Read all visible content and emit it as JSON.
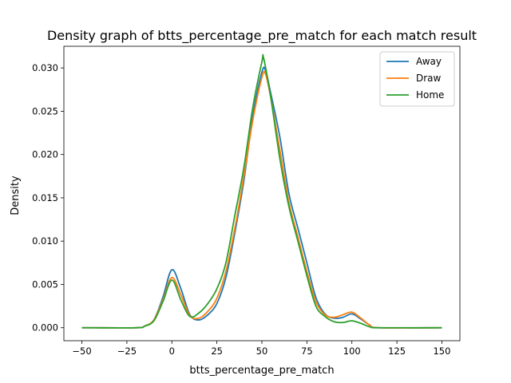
{
  "chart_data": {
    "type": "line",
    "title": "Density graph of btts_percentage_pre_match for each match result",
    "xlabel": "btts_percentage_pre_match",
    "ylabel": "Density",
    "xlim": [
      -60,
      160
    ],
    "ylim": [
      -0.0015,
      0.0325
    ],
    "xticks": [
      -50,
      -25,
      0,
      25,
      50,
      75,
      100,
      125,
      150
    ],
    "xtick_labels": [
      "−50",
      "−25",
      "0",
      "25",
      "50",
      "75",
      "100",
      "125",
      "150"
    ],
    "yticks": [
      0.0,
      0.005,
      0.01,
      0.015,
      0.02,
      0.025,
      0.03
    ],
    "ytick_labels": [
      "0.000",
      "0.005",
      "0.010",
      "0.015",
      "0.020",
      "0.025",
      "0.030"
    ],
    "legend_position": "top-right",
    "grid": false,
    "series": [
      {
        "name": "Away",
        "color": "#1f77b4",
        "points": [
          [
            -50,
            0.0
          ],
          [
            -20,
            0.0
          ],
          [
            -15,
            0.0002
          ],
          [
            -10,
            0.0009
          ],
          [
            -5,
            0.0035
          ],
          [
            0,
            0.0067
          ],
          [
            5,
            0.0045
          ],
          [
            10,
            0.0015
          ],
          [
            15,
            0.0009
          ],
          [
            20,
            0.0015
          ],
          [
            25,
            0.0028
          ],
          [
            30,
            0.0058
          ],
          [
            35,
            0.011
          ],
          [
            40,
            0.017
          ],
          [
            45,
            0.0245
          ],
          [
            50,
            0.0295
          ],
          [
            52,
            0.0297
          ],
          [
            55,
            0.027
          ],
          [
            60,
            0.022
          ],
          [
            65,
            0.0155
          ],
          [
            70,
            0.0115
          ],
          [
            75,
            0.0075
          ],
          [
            80,
            0.0035
          ],
          [
            85,
            0.0016
          ],
          [
            90,
            0.0011
          ],
          [
            95,
            0.0012
          ],
          [
            100,
            0.0016
          ],
          [
            105,
            0.001
          ],
          [
            110,
            0.0003
          ],
          [
            115,
            0.0
          ],
          [
            150,
            0.0
          ]
        ]
      },
      {
        "name": "Draw",
        "color": "#ff7f0e",
        "points": [
          [
            -50,
            0.0
          ],
          [
            -20,
            0.0
          ],
          [
            -15,
            0.0002
          ],
          [
            -10,
            0.0009
          ],
          [
            -5,
            0.0032
          ],
          [
            0,
            0.0058
          ],
          [
            5,
            0.0038
          ],
          [
            10,
            0.0014
          ],
          [
            15,
            0.0011
          ],
          [
            20,
            0.0019
          ],
          [
            25,
            0.0034
          ],
          [
            30,
            0.0065
          ],
          [
            35,
            0.0115
          ],
          [
            40,
            0.0175
          ],
          [
            45,
            0.024
          ],
          [
            50,
            0.0289
          ],
          [
            52,
            0.0293
          ],
          [
            55,
            0.0265
          ],
          [
            60,
            0.0205
          ],
          [
            65,
            0.0145
          ],
          [
            70,
            0.0105
          ],
          [
            75,
            0.0065
          ],
          [
            80,
            0.003
          ],
          [
            85,
            0.0015
          ],
          [
            90,
            0.0012
          ],
          [
            95,
            0.0015
          ],
          [
            100,
            0.0018
          ],
          [
            105,
            0.0011
          ],
          [
            110,
            0.0003
          ],
          [
            115,
            0.0
          ],
          [
            150,
            0.0
          ]
        ]
      },
      {
        "name": "Home",
        "color": "#2ca02c",
        "points": [
          [
            -50,
            0.0
          ],
          [
            -20,
            0.0
          ],
          [
            -15,
            0.0002
          ],
          [
            -10,
            0.0008
          ],
          [
            -5,
            0.003
          ],
          [
            0,
            0.0055
          ],
          [
            5,
            0.0032
          ],
          [
            10,
            0.0013
          ],
          [
            15,
            0.0017
          ],
          [
            20,
            0.0028
          ],
          [
            25,
            0.0045
          ],
          [
            30,
            0.0075
          ],
          [
            35,
            0.013
          ],
          [
            40,
            0.0185
          ],
          [
            45,
            0.0255
          ],
          [
            50,
            0.0307
          ],
          [
            51,
            0.0311
          ],
          [
            55,
            0.0265
          ],
          [
            60,
            0.0195
          ],
          [
            65,
            0.014
          ],
          [
            70,
            0.01
          ],
          [
            75,
            0.006
          ],
          [
            80,
            0.0025
          ],
          [
            85,
            0.0013
          ],
          [
            90,
            0.0007
          ],
          [
            95,
            0.0006
          ],
          [
            100,
            0.0008
          ],
          [
            105,
            0.0005
          ],
          [
            110,
            0.0001
          ],
          [
            115,
            0.0
          ],
          [
            150,
            0.0
          ]
        ]
      }
    ]
  }
}
